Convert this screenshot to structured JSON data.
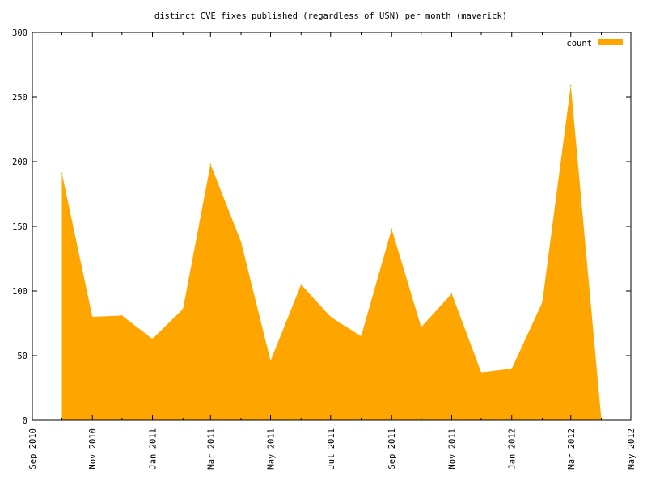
{
  "chart_data": {
    "type": "area",
    "title": "distinct CVE fixes published (regardless of USN) per month (maverick)",
    "xlabel": "",
    "ylabel": "",
    "xlim": [
      "2010-09-01",
      "2012-05-01"
    ],
    "ylim": [
      0,
      300
    ],
    "grid": false,
    "legend_position": "top-right",
    "x_ticks": [
      {
        "date": "2010-09-01",
        "label": "Sep 2010"
      },
      {
        "date": "2010-11-01",
        "label": "Nov 2010"
      },
      {
        "date": "2011-01-01",
        "label": "Jan 2011"
      },
      {
        "date": "2011-03-01",
        "label": "Mar 2011"
      },
      {
        "date": "2011-05-01",
        "label": "May 2011"
      },
      {
        "date": "2011-07-01",
        "label": "Jul 2011"
      },
      {
        "date": "2011-09-01",
        "label": "Sep 2011"
      },
      {
        "date": "2011-11-01",
        "label": "Nov 2011"
      },
      {
        "date": "2012-01-01",
        "label": "Jan 2012"
      },
      {
        "date": "2012-03-01",
        "label": "Mar 2012"
      },
      {
        "date": "2012-05-01",
        "label": "May 2012"
      }
    ],
    "y_ticks": [
      0,
      50,
      100,
      150,
      200,
      250,
      300
    ],
    "series": [
      {
        "name": "count",
        "color": "#ffa500",
        "points": [
          {
            "x": "2010-10-01",
            "y": 191
          },
          {
            "x": "2010-11-01",
            "y": 80
          },
          {
            "x": "2010-12-01",
            "y": 81
          },
          {
            "x": "2011-01-01",
            "y": 63
          },
          {
            "x": "2011-02-01",
            "y": 86
          },
          {
            "x": "2011-03-01",
            "y": 198
          },
          {
            "x": "2011-04-01",
            "y": 138
          },
          {
            "x": "2011-05-01",
            "y": 46
          },
          {
            "x": "2011-06-01",
            "y": 105
          },
          {
            "x": "2011-07-01",
            "y": 80
          },
          {
            "x": "2011-08-01",
            "y": 65
          },
          {
            "x": "2011-09-01",
            "y": 148
          },
          {
            "x": "2011-10-01",
            "y": 72
          },
          {
            "x": "2011-11-01",
            "y": 98
          },
          {
            "x": "2011-12-01",
            "y": 37
          },
          {
            "x": "2012-01-01",
            "y": 40
          },
          {
            "x": "2012-02-01",
            "y": 91
          },
          {
            "x": "2012-03-01",
            "y": 259
          },
          {
            "x": "2012-04-01",
            "y": 1
          }
        ]
      }
    ]
  }
}
